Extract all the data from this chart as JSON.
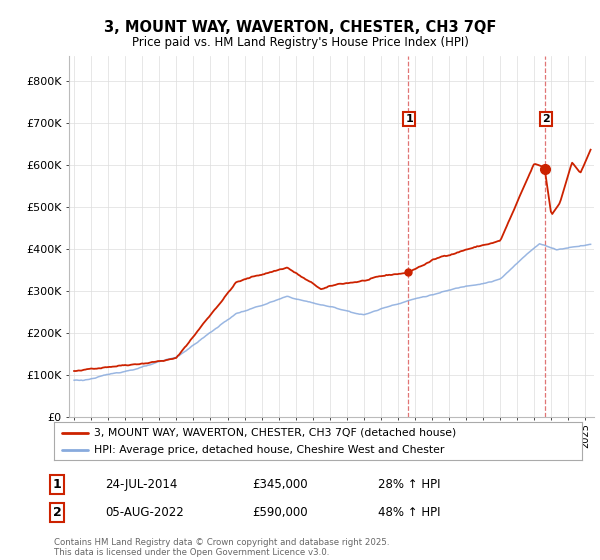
{
  "title": "3, MOUNT WAY, WAVERTON, CHESTER, CH3 7QF",
  "subtitle": "Price paid vs. HM Land Registry's House Price Index (HPI)",
  "yticks": [
    0,
    100000,
    200000,
    300000,
    400000,
    500000,
    600000,
    700000,
    800000
  ],
  "ytick_labels": [
    "£0",
    "£100K",
    "£200K",
    "£300K",
    "£400K",
    "£500K",
    "£600K",
    "£700K",
    "£800K"
  ],
  "xlim_start": 1994.7,
  "xlim_end": 2025.5,
  "ylim": [
    0,
    860000
  ],
  "red_color": "#cc2200",
  "blue_color": "#88aadd",
  "dashed_red": "#dd6666",
  "sale1_date": "24-JUL-2014",
  "sale1_price": 345000,
  "sale1_hpi": "28% ↑ HPI",
  "sale1_x": 2014.56,
  "sale2_date": "05-AUG-2022",
  "sale2_price": 590000,
  "sale2_hpi": "48% ↑ HPI",
  "sale2_x": 2022.6,
  "legend_line1": "3, MOUNT WAY, WAVERTON, CHESTER, CH3 7QF (detached house)",
  "legend_line2": "HPI: Average price, detached house, Cheshire West and Chester",
  "footer": "Contains HM Land Registry data © Crown copyright and database right 2025.\nThis data is licensed under the Open Government Licence v3.0.",
  "background_color": "#ffffff",
  "grid_color": "#dddddd"
}
